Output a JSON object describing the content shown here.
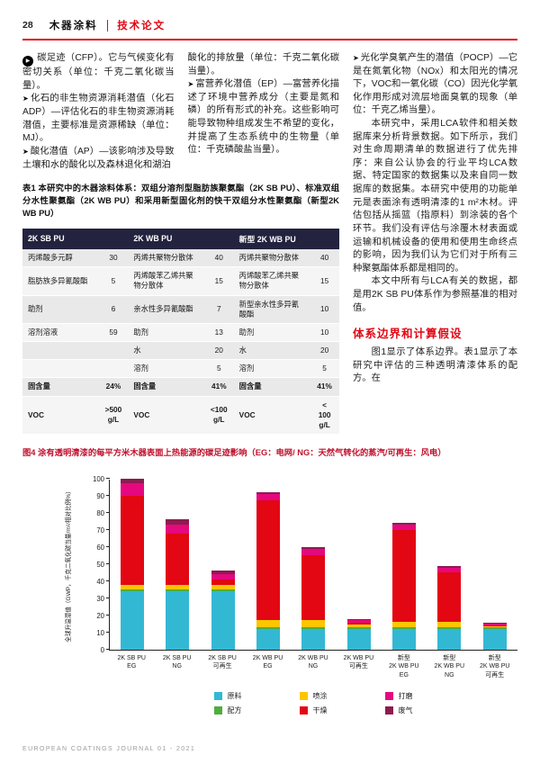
{
  "colors": {
    "accent_red": "#e30613",
    "table_header_bg": "#23233f",
    "figure_caption_red": "#c0122e"
  },
  "icons": {
    "continued_arrow": "▶",
    "bullet_arrow": "➤"
  },
  "header": {
    "page_number": "28",
    "section": "木器涂料",
    "article_type": "技术论文"
  },
  "body": {
    "col1": {
      "p1": "碳足迹（CFP）。它与气候变化有密切关系（单位：千克二氧化碳当量）。",
      "p2": "化石的非生物资源消耗潜值（化石ADP）—评估化石的非生物资源消耗潜值，主要标准是资源稀缺（单位：MJ）。",
      "p3": "酸化潜值（AP）—该影响涉及导致土壤和水的酸化以及森林退化和湖泊"
    },
    "col2": {
      "p1": "酸化的排放量（单位：千克二氧化碳当量）。",
      "p2": "富营养化潜值（EP）—富营养化描述了环境中营养成分（主要是氮和磷）的所有形式的补充。这些影响可能导致物种组成发生不希望的变化，并提高了生态系统中的生物量（单位：千克磷酸盐当量）。"
    },
    "col3": {
      "p1": "光化学臭氧产生的潜值（POCP）—它是在氮氧化物（NOx）和太阳光的情况下，VOC和一氧化碳（CO）因光化学氧化作用形成对流层地面臭氧的现象（单位：千克乙烯当量）。",
      "p2": "本研究中，采用LCA软件和相关数据库来分析背景数据。如下所示，我们对生命周期清单的数据进行了优先排序：来自公认协会的行业平均LCA数据、特定国家的数据集以及来自同一数据库的数据集。本研究中使用的功能单元是表面涂有透明清漆的1 m²木材。评估包括从摇篮（指原料）到涂装的各个环节。我们没有评估与涂覆木材表面或运输和机械设备的使用和使用生命终点的影响，因为我们认为它们对于所有三种聚氨酯体系都是相同的。",
      "p3": "本文中所有与LCA有关的数据，都是用2K SB PU体系作为参照基准的相对值。",
      "heading": "体系边界和计算假设",
      "p4": "图1显示了体系边界。表1显示了本研究中评估的三种透明清漆体系的配方。在"
    }
  },
  "table": {
    "caption": "表1 本研究中的木器涂料体系：双组分溶剂型脂肪族聚氨酯（2K SB PU）、标准双组分水性聚氨酯（2K WB PU）和采用新型固化剂的快干双组分水性聚氨酯（新型2K WB PU）",
    "col_headers": [
      "2K SB PU",
      "2K WB PU",
      "新型 2K WB PU"
    ],
    "rows": [
      [
        {
          "label": "丙烯酸多元醇",
          "value": "30"
        },
        {
          "label": "丙烯共聚物分散体",
          "value": "40"
        },
        {
          "label": "丙烯共聚物分散体",
          "value": "40"
        }
      ],
      [
        {
          "label": "脂肪族多异氰酸酯",
          "value": "5"
        },
        {
          "label": "丙烯酸苯乙烯共聚物分散体",
          "value": "15"
        },
        {
          "label": "丙烯酸苯乙烯共聚物分散体",
          "value": "15"
        }
      ],
      [
        {
          "label": "助剂",
          "value": "6"
        },
        {
          "label": "亲水性多异氰酸酯",
          "value": "7"
        },
        {
          "label": "新型亲水性多异氰酸酯",
          "value": "10"
        }
      ],
      [
        {
          "label": "溶剂溶液",
          "value": "59"
        },
        {
          "label": "助剂",
          "value": "13"
        },
        {
          "label": "助剂",
          "value": "10"
        }
      ],
      [
        {
          "label": "",
          "value": ""
        },
        {
          "label": "水",
          "value": "20"
        },
        {
          "label": "水",
          "value": "20"
        }
      ],
      [
        {
          "label": "",
          "value": ""
        },
        {
          "label": "溶剂",
          "value": "5"
        },
        {
          "label": "溶剂",
          "value": "5"
        }
      ],
      [
        {
          "label": "固含量",
          "value": "24%"
        },
        {
          "label": "固含量",
          "value": "41%"
        },
        {
          "label": "固含量",
          "value": "41%"
        }
      ],
      [
        {
          "label": "VOC",
          "value": ">500 g/L"
        },
        {
          "label": "VOC",
          "value": "<100 g/L"
        },
        {
          "label": "VOC",
          "value": "< 100 g/L"
        }
      ]
    ]
  },
  "chart_data": {
    "type": "bar",
    "stacked": true,
    "title": "图4 涂有透明清漆的每平方米木器表面上热能源的碳足迹影响（EG：电网/ NG：天然气转化的蒸汽/可再生：风电）",
    "ylabel": "全球升温潜值（GWP，千克二氧化碳当量/m²/相对比例%）",
    "ylim": [
      0,
      100
    ],
    "ytick_step": 10,
    "grid": false,
    "legend_position": "bottom",
    "categories": [
      [
        "2K SB PU",
        "EG"
      ],
      [
        "2K SB PU",
        "NG"
      ],
      [
        "2K SB PU",
        "可再生"
      ],
      [
        "2K WB PU",
        "EG"
      ],
      [
        "2K WB PU",
        "NG"
      ],
      [
        "2K WB PU",
        "可再生"
      ],
      [
        "新型",
        "2K WB PU",
        "EG"
      ],
      [
        "新型",
        "2K WB PU",
        "NG"
      ],
      [
        "新型",
        "2K WB PU",
        "可再生"
      ]
    ],
    "series": [
      {
        "name": "原料",
        "color": "#33b8d4",
        "values": [
          34,
          34,
          34,
          12,
          12,
          12,
          12,
          12,
          12
        ]
      },
      {
        "name": "配方",
        "color": "#4fae3b",
        "values": [
          1,
          1,
          1,
          1,
          1,
          1,
          1,
          1,
          1
        ]
      },
      {
        "name": "喷涂",
        "color": "#fdc600",
        "values": [
          3,
          3,
          3,
          4,
          4,
          1.5,
          3,
          3,
          0.5
        ]
      },
      {
        "name": "干燥",
        "color": "#e30613",
        "values": [
          52,
          30,
          3,
          70,
          38,
          1,
          54,
          29,
          0.5
        ]
      },
      {
        "name": "打磨",
        "color": "#e5087e",
        "values": [
          7,
          5,
          3,
          4,
          4,
          1.5,
          3,
          3,
          1
        ]
      },
      {
        "name": "废气",
        "color": "#8e1b50",
        "values": [
          3,
          3,
          2,
          1,
          1,
          0.5,
          1,
          1,
          0.5
        ]
      }
    ],
    "totals_relative_percent": [
      100,
      76,
      46,
      92,
      60,
      17.5,
      74,
      49,
      15.5
    ]
  },
  "footer": {
    "journal": "EUROPEAN COATINGS JOURNAL 01 - 2021"
  }
}
